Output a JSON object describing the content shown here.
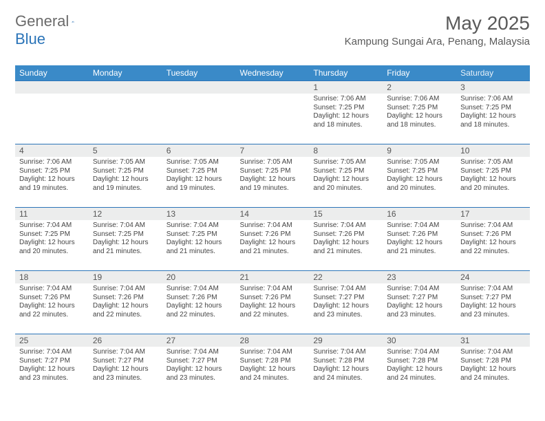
{
  "brand": {
    "general": "General",
    "blue": "Blue"
  },
  "title": "May 2025",
  "location": "Kampung Sungai Ara, Penang, Malaysia",
  "colors": {
    "header_bg": "#3a8ac8",
    "header_text": "#ffffff",
    "week_border": "#2b74b8",
    "daynum_bg": "#eceded",
    "text": "#444444",
    "title_text": "#5a5a5a"
  },
  "dow": [
    "Sunday",
    "Monday",
    "Tuesday",
    "Wednesday",
    "Thursday",
    "Friday",
    "Saturday"
  ],
  "weeks": [
    [
      null,
      null,
      null,
      null,
      {
        "n": "1",
        "sr": "7:06 AM",
        "ss": "7:25 PM",
        "dl": "12 hours and 18 minutes."
      },
      {
        "n": "2",
        "sr": "7:06 AM",
        "ss": "7:25 PM",
        "dl": "12 hours and 18 minutes."
      },
      {
        "n": "3",
        "sr": "7:06 AM",
        "ss": "7:25 PM",
        "dl": "12 hours and 18 minutes."
      }
    ],
    [
      {
        "n": "4",
        "sr": "7:06 AM",
        "ss": "7:25 PM",
        "dl": "12 hours and 19 minutes."
      },
      {
        "n": "5",
        "sr": "7:05 AM",
        "ss": "7:25 PM",
        "dl": "12 hours and 19 minutes."
      },
      {
        "n": "6",
        "sr": "7:05 AM",
        "ss": "7:25 PM",
        "dl": "12 hours and 19 minutes."
      },
      {
        "n": "7",
        "sr": "7:05 AM",
        "ss": "7:25 PM",
        "dl": "12 hours and 19 minutes."
      },
      {
        "n": "8",
        "sr": "7:05 AM",
        "ss": "7:25 PM",
        "dl": "12 hours and 20 minutes."
      },
      {
        "n": "9",
        "sr": "7:05 AM",
        "ss": "7:25 PM",
        "dl": "12 hours and 20 minutes."
      },
      {
        "n": "10",
        "sr": "7:05 AM",
        "ss": "7:25 PM",
        "dl": "12 hours and 20 minutes."
      }
    ],
    [
      {
        "n": "11",
        "sr": "7:04 AM",
        "ss": "7:25 PM",
        "dl": "12 hours and 20 minutes."
      },
      {
        "n": "12",
        "sr": "7:04 AM",
        "ss": "7:25 PM",
        "dl": "12 hours and 21 minutes."
      },
      {
        "n": "13",
        "sr": "7:04 AM",
        "ss": "7:25 PM",
        "dl": "12 hours and 21 minutes."
      },
      {
        "n": "14",
        "sr": "7:04 AM",
        "ss": "7:26 PM",
        "dl": "12 hours and 21 minutes."
      },
      {
        "n": "15",
        "sr": "7:04 AM",
        "ss": "7:26 PM",
        "dl": "12 hours and 21 minutes."
      },
      {
        "n": "16",
        "sr": "7:04 AM",
        "ss": "7:26 PM",
        "dl": "12 hours and 21 minutes."
      },
      {
        "n": "17",
        "sr": "7:04 AM",
        "ss": "7:26 PM",
        "dl": "12 hours and 22 minutes."
      }
    ],
    [
      {
        "n": "18",
        "sr": "7:04 AM",
        "ss": "7:26 PM",
        "dl": "12 hours and 22 minutes."
      },
      {
        "n": "19",
        "sr": "7:04 AM",
        "ss": "7:26 PM",
        "dl": "12 hours and 22 minutes."
      },
      {
        "n": "20",
        "sr": "7:04 AM",
        "ss": "7:26 PM",
        "dl": "12 hours and 22 minutes."
      },
      {
        "n": "21",
        "sr": "7:04 AM",
        "ss": "7:26 PM",
        "dl": "12 hours and 22 minutes."
      },
      {
        "n": "22",
        "sr": "7:04 AM",
        "ss": "7:27 PM",
        "dl": "12 hours and 23 minutes."
      },
      {
        "n": "23",
        "sr": "7:04 AM",
        "ss": "7:27 PM",
        "dl": "12 hours and 23 minutes."
      },
      {
        "n": "24",
        "sr": "7:04 AM",
        "ss": "7:27 PM",
        "dl": "12 hours and 23 minutes."
      }
    ],
    [
      {
        "n": "25",
        "sr": "7:04 AM",
        "ss": "7:27 PM",
        "dl": "12 hours and 23 minutes."
      },
      {
        "n": "26",
        "sr": "7:04 AM",
        "ss": "7:27 PM",
        "dl": "12 hours and 23 minutes."
      },
      {
        "n": "27",
        "sr": "7:04 AM",
        "ss": "7:27 PM",
        "dl": "12 hours and 23 minutes."
      },
      {
        "n": "28",
        "sr": "7:04 AM",
        "ss": "7:28 PM",
        "dl": "12 hours and 24 minutes."
      },
      {
        "n": "29",
        "sr": "7:04 AM",
        "ss": "7:28 PM",
        "dl": "12 hours and 24 minutes."
      },
      {
        "n": "30",
        "sr": "7:04 AM",
        "ss": "7:28 PM",
        "dl": "12 hours and 24 minutes."
      },
      {
        "n": "31",
        "sr": "7:04 AM",
        "ss": "7:28 PM",
        "dl": "12 hours and 24 minutes."
      }
    ]
  ],
  "labels": {
    "sunrise": "Sunrise: ",
    "sunset": "Sunset: ",
    "daylight": "Daylight: "
  }
}
